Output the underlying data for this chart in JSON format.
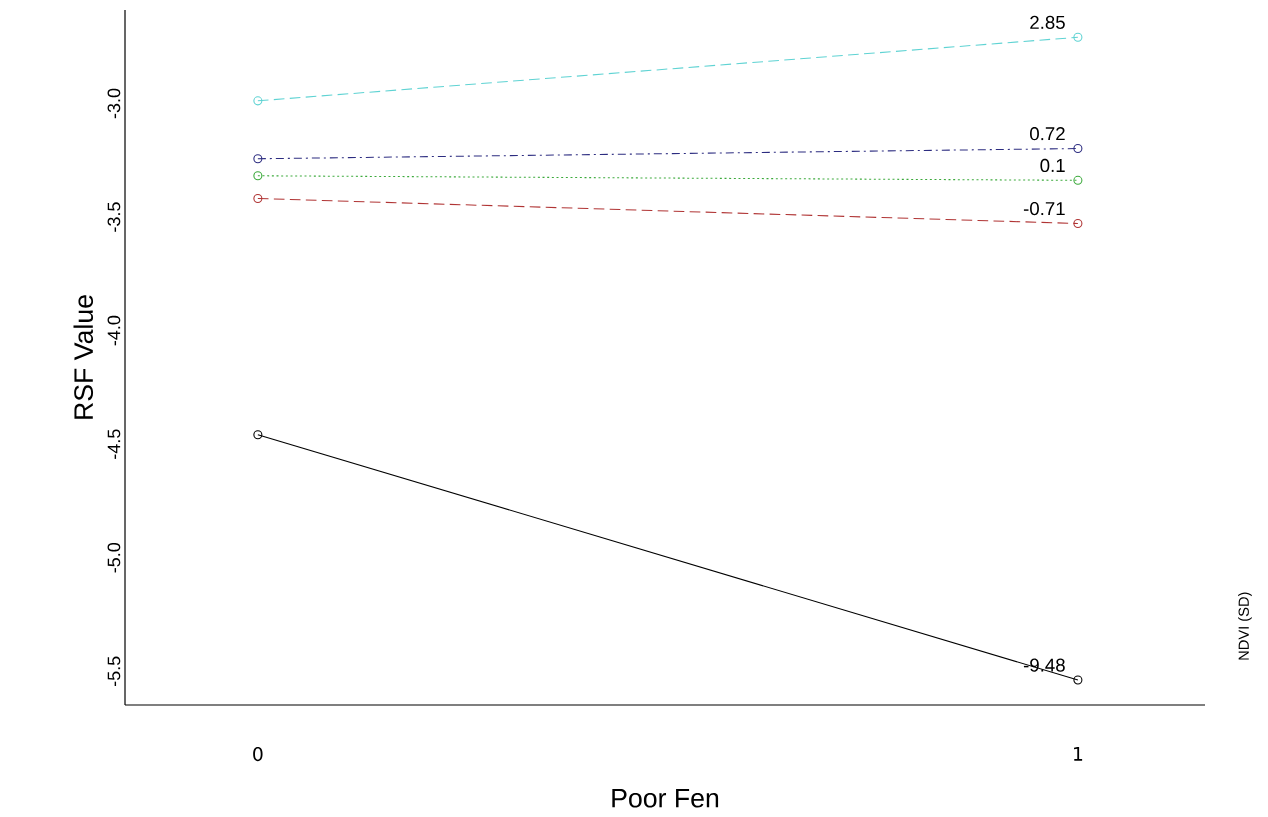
{
  "chart_data": {
    "type": "line",
    "xlabel": "Poor Fen",
    "ylabel": "RSF Value",
    "legend_title": "NDVI (SD)",
    "categories": [
      "0",
      "1"
    ],
    "series": [
      {
        "name": "2.85",
        "color": "#5fd3d3",
        "line_style": "dashed",
        "values": [
          -3.0,
          -2.72
        ]
      },
      {
        "name": "0.72",
        "color": "#2c2c80",
        "line_style": "dashdot",
        "values": [
          -3.255,
          -3.21
        ]
      },
      {
        "name": "0.1",
        "color": "#3caa3c",
        "line_style": "dotted",
        "values": [
          -3.33,
          -3.35
        ]
      },
      {
        "name": "-0.71",
        "color": "#b03434",
        "line_style": "dashed",
        "values": [
          -3.43,
          -3.54
        ]
      },
      {
        "name": "-9.48",
        "color": "#000000",
        "line_style": "solid",
        "values": [
          -4.47,
          -5.55
        ]
      }
    ],
    "marker": "circle",
    "ylim": [
      -5.66,
      -2.6
    ],
    "yticks": [
      {
        "value": -3.0,
        "label": "-3.0"
      },
      {
        "value": -3.5,
        "label": "-3.5"
      },
      {
        "value": -4.0,
        "label": "-4.0"
      },
      {
        "value": -4.5,
        "label": "-4.5"
      },
      {
        "value": -5.0,
        "label": "-5.0"
      },
      {
        "value": -5.5,
        "label": "-5.5"
      }
    ],
    "grid": false
  }
}
